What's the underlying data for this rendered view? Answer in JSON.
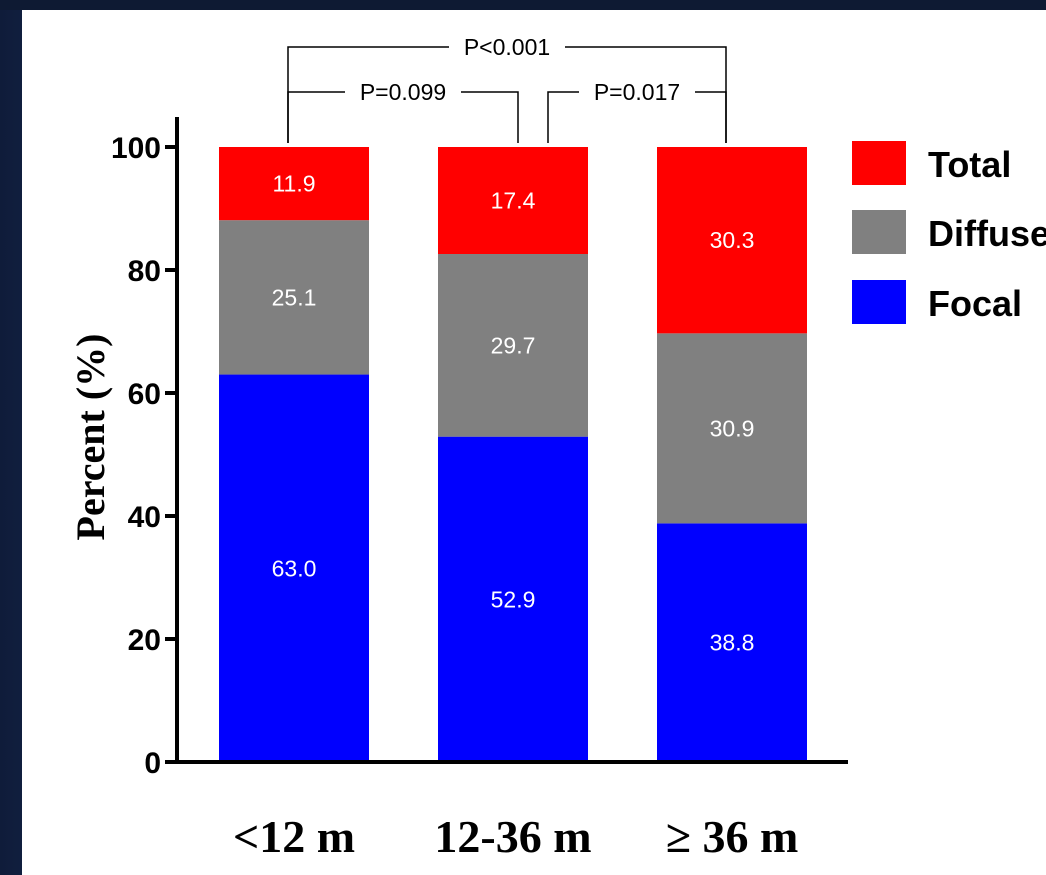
{
  "chart_data": {
    "type": "bar",
    "stacked": true,
    "categories": [
      "<12 m",
      "12-36 m",
      "≥ 36 m"
    ],
    "series": [
      {
        "name": "Focal",
        "values": [
          63.0,
          52.9,
          38.8
        ],
        "labels": [
          "63.0",
          "52.9",
          "38.8"
        ],
        "color": "#0000ff"
      },
      {
        "name": "Diffuse",
        "values": [
          25.1,
          29.7,
          30.9
        ],
        "labels": [
          "25.1",
          "29.7",
          "30.9"
        ],
        "color": "#808080"
      },
      {
        "name": "Total",
        "values": [
          11.9,
          17.4,
          30.3
        ],
        "labels": [
          "11.9",
          "17.4",
          "30.3"
        ],
        "color": "#ff0000"
      }
    ],
    "legend_order": [
      "Total",
      "Diffuse",
      "Focal"
    ],
    "legend_position": "right",
    "ylabel": "Percent (%)",
    "xlabel": "",
    "ylim": [
      0,
      100
    ],
    "yticks": [
      0,
      20,
      40,
      60,
      80,
      100
    ],
    "grid": false,
    "annotations": [
      {
        "text": "P<0.001",
        "from": 0,
        "to": 2
      },
      {
        "text": "P=0.099",
        "from": 0,
        "to": 1
      },
      {
        "text": "P=0.017",
        "from": 1,
        "to": 2
      }
    ]
  }
}
